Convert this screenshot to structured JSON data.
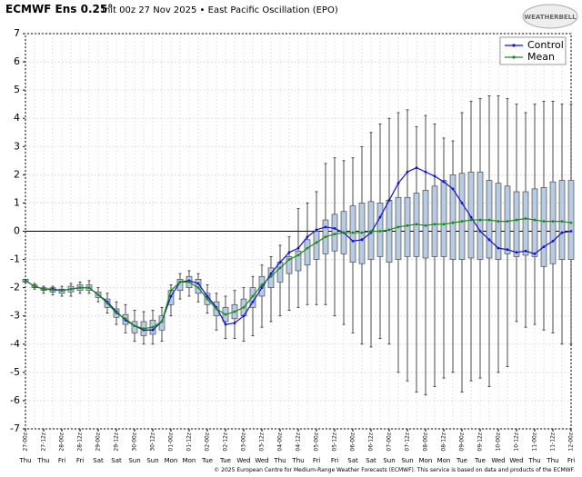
{
  "chart_data": {
    "type": "boxline",
    "title": "ECMWF Ens 0.25°",
    "subtitle": "Init 00z 27 Nov 2025 • East Pacific Oscillation (EPO)",
    "logo": "WEATHERBELL",
    "footer": "© 2025 European Centre for Medium-Range Weather Forecasts (ECMWF). This service is based on data and products of the ECMWF.",
    "categories": [
      "27-00z",
      null,
      "27-12z",
      null,
      "28-00z",
      null,
      "28-12z",
      null,
      "29-00z",
      null,
      "29-12z",
      null,
      "30-00z",
      null,
      "30-12z",
      null,
      "01-00z",
      null,
      "01-12z",
      null,
      "02-00z",
      null,
      "02-12z",
      null,
      "03-00z",
      null,
      "03-12z",
      null,
      "04-00z",
      null,
      "04-12z",
      null,
      "05-00z",
      null,
      "05-12z",
      null,
      "06-00z",
      null,
      "06-12z",
      null,
      "07-00z",
      null,
      "07-12z",
      null,
      "08-00z",
      null,
      "08-12z",
      null,
      "09-00z",
      null,
      "09-12z",
      null,
      "10-00z",
      null,
      "10-12z",
      null,
      "11-00z",
      null,
      "11-12z",
      null,
      "12-00z"
    ],
    "weekdays": [
      "Thu",
      null,
      "Thu",
      null,
      "Fri",
      null,
      "Fri",
      null,
      "Sat",
      null,
      "Sat",
      null,
      "Sun",
      null,
      "Sun",
      null,
      "Mon",
      null,
      "Mon",
      null,
      "Tue",
      null,
      "Tue",
      null,
      "Wed",
      null,
      "Wed",
      null,
      "Thu",
      null,
      "Thu",
      null,
      "Fri",
      null,
      "Fri",
      null,
      "Sat",
      null,
      "Sat",
      null,
      "Sun",
      null,
      "Sun",
      null,
      "Mon",
      null,
      "Mon",
      null,
      "Tue",
      null,
      "Tue",
      null,
      "Wed",
      null,
      "Wed",
      null,
      "Thu",
      null,
      "Thu",
      null,
      "Fri"
    ],
    "series": [
      {
        "name": "Control",
        "color": "#1010d0",
        "values": [
          -1.75,
          -1.95,
          -2.05,
          -2.05,
          -2.1,
          -2.05,
          -2.0,
          -2.0,
          -2.25,
          -2.5,
          -2.85,
          -3.15,
          -3.35,
          -3.5,
          -3.5,
          -3.2,
          -2.3,
          -1.8,
          -1.75,
          -1.85,
          -2.3,
          -2.7,
          -3.3,
          -3.25,
          -3.0,
          -2.5,
          -2.0,
          -1.5,
          -1.1,
          -0.75,
          -0.6,
          -0.2,
          0.05,
          0.15,
          0.1,
          -0.05,
          -0.35,
          -0.3,
          -0.05,
          0.5,
          1.1,
          1.7,
          2.1,
          2.25,
          2.1,
          1.95,
          1.75,
          1.5,
          1.0,
          0.5,
          0,
          -0.3,
          -0.6,
          -0.65,
          -0.75,
          -0.7,
          -0.8,
          -0.55,
          -0.35,
          -0.05,
          0
        ]
      },
      {
        "name": "Mean",
        "color": "#1a8a1a",
        "values": [
          -1.75,
          -1.95,
          -2.05,
          -2.08,
          -2.1,
          -2.05,
          -2.0,
          -2.0,
          -2.25,
          -2.55,
          -2.9,
          -3.1,
          -3.35,
          -3.45,
          -3.4,
          -3.2,
          -2.1,
          -1.8,
          -1.8,
          -2.0,
          -2.4,
          -2.75,
          -2.95,
          -2.85,
          -2.7,
          -2.3,
          -1.9,
          -1.6,
          -1.3,
          -1.0,
          -0.85,
          -0.6,
          -0.4,
          -0.2,
          -0.1,
          -0.05,
          -0.05,
          -0.05,
          0,
          0,
          0.05,
          0.15,
          0.2,
          0.25,
          0.2,
          0.25,
          0.25,
          0.3,
          0.35,
          0.4,
          0.4,
          0.4,
          0.35,
          0.35,
          0.4,
          0.45,
          0.4,
          0.35,
          0.35,
          0.35,
          0.3
        ]
      }
    ],
    "boxes": {
      "color": "#b8cbe0",
      "q1": [
        -1.8,
        -2.0,
        -2.1,
        -2.15,
        -2.2,
        -2.15,
        -2.1,
        -2.1,
        -2.35,
        -2.7,
        -3.05,
        -3.3,
        -3.6,
        -3.7,
        -3.65,
        -3.5,
        -2.6,
        -2.1,
        -2.0,
        -2.2,
        -2.6,
        -3.0,
        -3.2,
        -3.1,
        -3.0,
        -2.7,
        -2.3,
        -2.0,
        -1.8,
        -1.5,
        -1.4,
        -1.2,
        -1.0,
        -0.8,
        -0.7,
        -0.8,
        -1.1,
        -1.15,
        -1.0,
        -0.9,
        -1.1,
        -1.0,
        -0.9,
        -0.9,
        -0.95,
        -0.9,
        -0.9,
        -1.0,
        -1.0,
        -0.95,
        -1.0,
        -0.95,
        -1.0,
        -0.8,
        -0.9,
        -0.85,
        -0.9,
        -1.25,
        -1.15,
        -1.0,
        -1.0
      ],
      "q3": [
        -1.7,
        -1.9,
        -2.0,
        -2.0,
        -2.05,
        -1.95,
        -1.9,
        -1.9,
        -2.15,
        -2.4,
        -2.75,
        -2.95,
        -3.2,
        -3.2,
        -3.15,
        -3.0,
        -2.1,
        -1.7,
        -1.6,
        -1.7,
        -2.2,
        -2.5,
        -2.7,
        -2.6,
        -2.4,
        -2.0,
        -1.6,
        -1.3,
        -1.1,
        -0.9,
        -0.7,
        -0.3,
        0,
        0.4,
        0.6,
        0.7,
        0.9,
        1.0,
        1.05,
        1.0,
        1.1,
        1.2,
        1.2,
        1.35,
        1.45,
        1.6,
        1.8,
        2.0,
        2.05,
        2.1,
        2.1,
        1.8,
        1.7,
        1.6,
        1.4,
        1.4,
        1.5,
        1.55,
        1.75,
        1.8,
        1.8
      ],
      "low": [
        -1.8,
        -2.05,
        -2.2,
        -2.25,
        -2.3,
        -2.3,
        -2.2,
        -2.2,
        -2.5,
        -2.9,
        -3.3,
        -3.6,
        -3.9,
        -4.0,
        -4.0,
        -3.9,
        -3.0,
        -2.4,
        -2.3,
        -2.5,
        -2.9,
        -3.5,
        -3.8,
        -3.8,
        -3.9,
        -3.7,
        -3.4,
        -3.2,
        -3.0,
        -2.8,
        -2.7,
        -2.6,
        -2.6,
        -2.6,
        -3.0,
        -3.3,
        -3.6,
        -4.0,
        -4.1,
        -3.8,
        -4.0,
        -5.0,
        -5.3,
        -5.7,
        -5.8,
        -5.5,
        -5.2,
        -5.0,
        -5.7,
        -5.3,
        -5.2,
        -5.5,
        -5.0,
        -4.8,
        -3.2,
        -3.4,
        -3.3,
        -3.5,
        -3.6,
        -4.0,
        -4.0
      ],
      "high": [
        -1.7,
        -1.85,
        -1.95,
        -1.95,
        -1.95,
        -1.85,
        -1.8,
        -1.75,
        -2.0,
        -2.2,
        -2.5,
        -2.6,
        -2.8,
        -2.85,
        -2.8,
        -2.7,
        -1.9,
        -1.5,
        -1.4,
        -1.5,
        -1.9,
        -2.2,
        -2.3,
        -2.1,
        -2.0,
        -1.6,
        -1.2,
        -0.9,
        -0.5,
        -0.2,
        0.8,
        1.0,
        1.4,
        2.4,
        2.6,
        2.5,
        2.6,
        3.0,
        3.5,
        3.8,
        4.0,
        4.2,
        4.3,
        3.7,
        4.1,
        3.8,
        3.3,
        3.2,
        4.2,
        4.6,
        4.7,
        4.8,
        4.8,
        4.7,
        4.5,
        4.2,
        4.5,
        4.6,
        4.6,
        4.5,
        4.5
      ]
    },
    "ylim": [
      -7,
      7
    ],
    "yticks": [
      -7,
      -6,
      -5,
      -4,
      -3,
      -2,
      -1,
      0,
      1,
      2,
      3,
      4,
      5,
      6,
      7
    ],
    "legend": "upper right",
    "grid": true
  }
}
